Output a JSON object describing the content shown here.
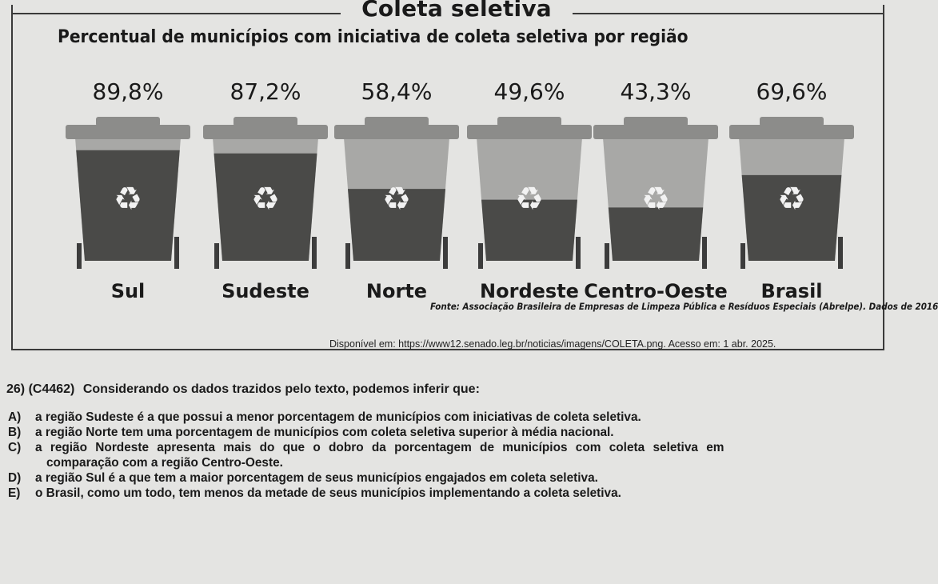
{
  "infographic": {
    "title": "Coleta seletiva",
    "subtitle": "Percentual de municípios com iniciativa de coleta seletiva por região",
    "source": "Fonte: Associação Brasileira de Empresas de Limpeza Pública e Resíduos Especiais (Abrelpe). Dados de 2016",
    "recycle_icon": "♻"
  },
  "chart_data": {
    "type": "bar",
    "title": "Percentual de municípios com iniciativa de coleta seletiva por região",
    "categories": [
      "Sul",
      "Sudeste",
      "Norte",
      "Nordeste",
      "Centro-Oeste",
      "Brasil"
    ],
    "values": [
      89.8,
      87.2,
      58.4,
      49.6,
      43.3,
      69.6
    ],
    "value_labels": [
      "89,8%",
      "87,2%",
      "58,4%",
      "49,6%",
      "43,3%",
      "69,6%"
    ],
    "unit": "%",
    "ylim": [
      0,
      100
    ],
    "grid": false,
    "colors": {
      "bin_empty": "#a8a8a6",
      "bin_fill": "#4a4a48",
      "lid": "#8c8c8a",
      "wheel": "#3c3c3c"
    }
  },
  "credit": "Disponível em: https://www12.senado.leg.br/noticias/imagens/COLETA.png. Acesso em: 1 abr. 2025.",
  "question": {
    "number": "26)",
    "code": "(C4462)",
    "stem": "Considerando os dados trazidos pelo texto, podemos inferir que:",
    "options": [
      {
        "letter": "A)",
        "text": "a região Sudeste é a que possui a menor porcentagem de municípios com iniciativas de coleta seletiva."
      },
      {
        "letter": "B)",
        "text": "a região Norte tem uma porcentagem de municípios com coleta seletiva superior à média nacional."
      },
      {
        "letter": "C)",
        "text": "a região Nordeste apresenta mais do que o dobro da porcentagem de municípios com coleta seletiva em",
        "text_cont": "comparação com a região Centro-Oeste."
      },
      {
        "letter": "D)",
        "text": "a região Sul é a que tem a maior porcentagem de seus municípios engajados em coleta seletiva."
      },
      {
        "letter": "E)",
        "text": "o Brasil, como um todo, tem menos da metade de seus municípios implementando a coleta seletiva."
      }
    ]
  }
}
